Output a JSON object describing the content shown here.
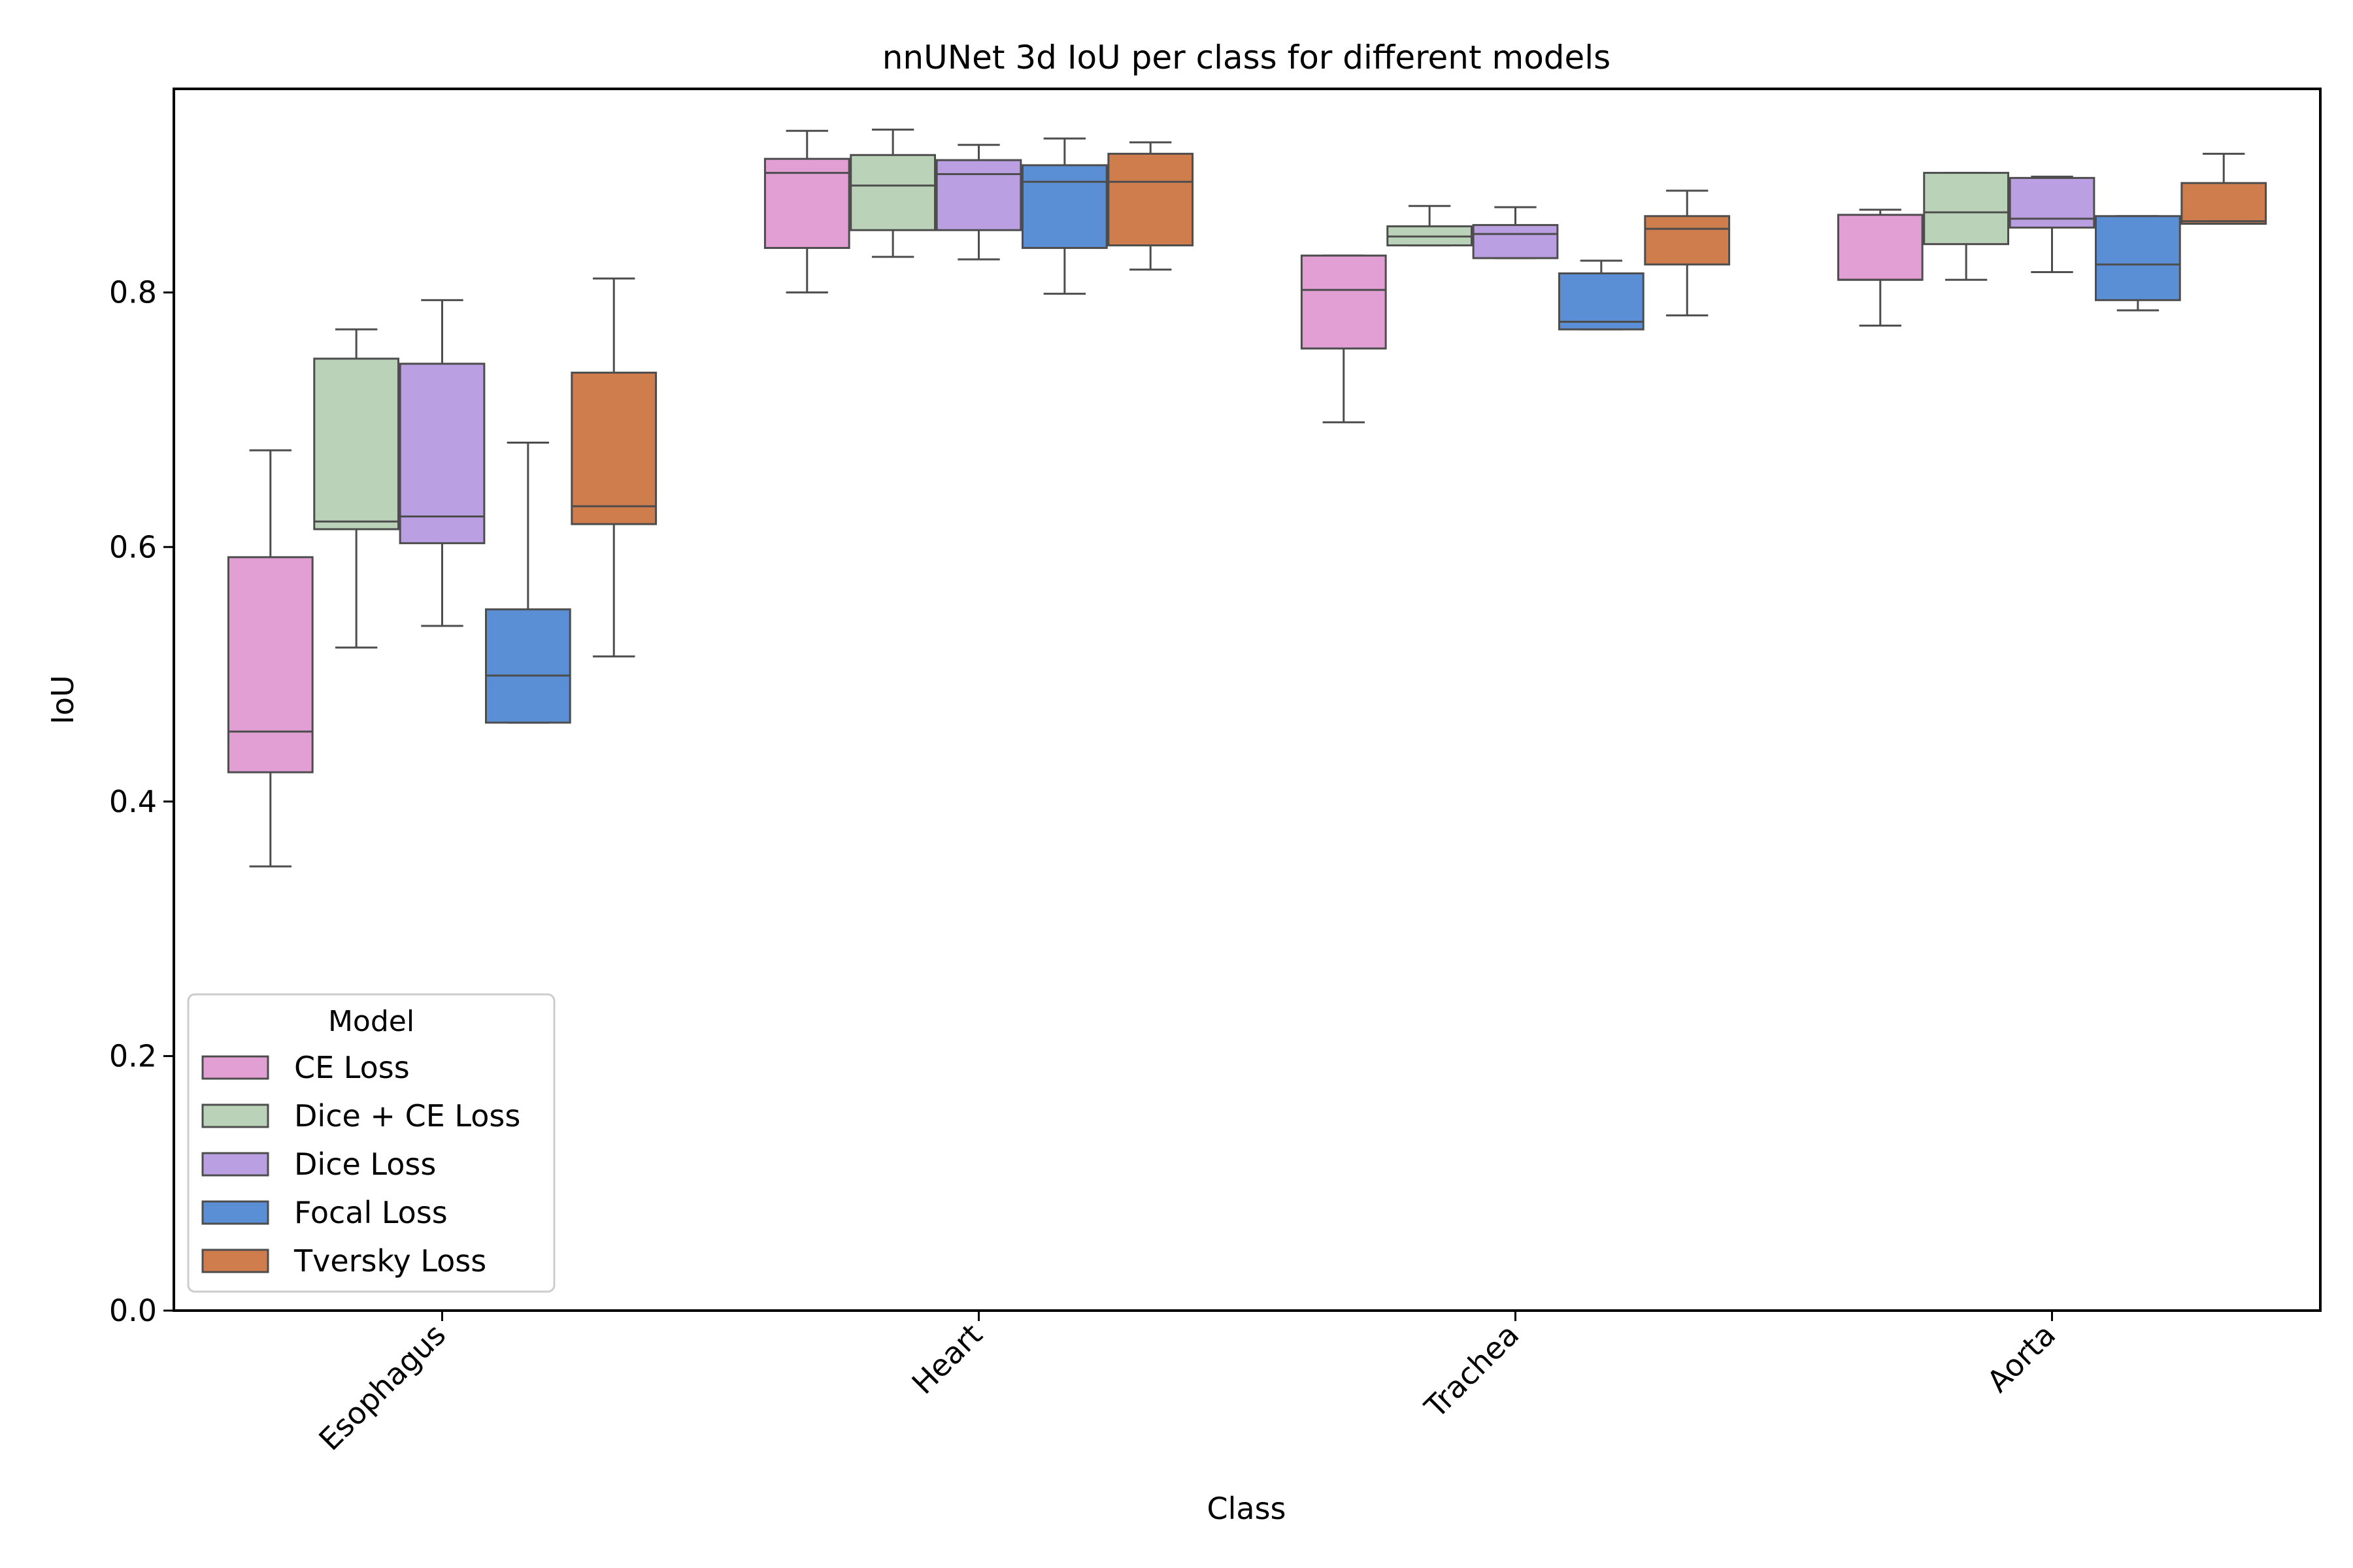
{
  "chart_data": {
    "type": "boxplot",
    "title": "nnUNet 3d IoU per class for different models",
    "xlabel": "Class",
    "ylabel": "IoU",
    "ylim": [
      0,
      0.96
    ],
    "yticks": [
      0.0,
      0.2,
      0.4,
      0.6,
      0.8
    ],
    "ytick_labels": [
      "0.0",
      "0.2",
      "0.4",
      "0.6",
      "0.8"
    ],
    "categories": [
      "Esophagus",
      "Heart",
      "Trachea",
      "Aorta"
    ],
    "legend": {
      "title": "Model",
      "placement": "lower-left"
    },
    "grid": false,
    "series": [
      {
        "name": "CE Loss",
        "color": "#e19fd3",
        "boxes": [
          {
            "whislo": 0.349,
            "q1": 0.423,
            "med": 0.455,
            "q3": 0.592,
            "whishi": 0.676
          },
          {
            "whislo": 0.8,
            "q1": 0.835,
            "med": 0.894,
            "q3": 0.905,
            "whishi": 0.927
          },
          {
            "whislo": 0.698,
            "q1": 0.756,
            "med": 0.802,
            "q3": 0.829,
            "whishi": 0.829
          },
          {
            "whislo": 0.774,
            "q1": 0.81,
            "med": 0.81,
            "q3": 0.861,
            "whishi": 0.865
          }
        ]
      },
      {
        "name": "Dice + CE Loss",
        "color": "#bad3b8",
        "boxes": [
          {
            "whislo": 0.521,
            "q1": 0.614,
            "med": 0.62,
            "q3": 0.748,
            "whishi": 0.771
          },
          {
            "whislo": 0.828,
            "q1": 0.849,
            "med": 0.884,
            "q3": 0.908,
            "whishi": 0.928
          },
          {
            "whislo": 0.837,
            "q1": 0.837,
            "med": 0.844,
            "q3": 0.852,
            "whishi": 0.868
          },
          {
            "whislo": 0.81,
            "q1": 0.838,
            "med": 0.863,
            "q3": 0.894,
            "whishi": 0.894
          }
        ]
      },
      {
        "name": "Dice Loss",
        "color": "#bb9fe3",
        "boxes": [
          {
            "whislo": 0.538,
            "q1": 0.603,
            "med": 0.624,
            "q3": 0.744,
            "whishi": 0.794
          },
          {
            "whislo": 0.826,
            "q1": 0.849,
            "med": 0.893,
            "q3": 0.904,
            "whishi": 0.916
          },
          {
            "whislo": 0.827,
            "q1": 0.827,
            "med": 0.846,
            "q3": 0.853,
            "whishi": 0.867
          },
          {
            "whislo": 0.816,
            "q1": 0.851,
            "med": 0.858,
            "q3": 0.89,
            "whishi": 0.891
          }
        ]
      },
      {
        "name": "Focal Loss",
        "color": "#5a8fd6",
        "boxes": [
          {
            "whislo": 0.462,
            "q1": 0.462,
            "med": 0.499,
            "q3": 0.551,
            "whishi": 0.682
          },
          {
            "whislo": 0.799,
            "q1": 0.835,
            "med": 0.887,
            "q3": 0.9,
            "whishi": 0.921
          },
          {
            "whislo": 0.771,
            "q1": 0.771,
            "med": 0.777,
            "q3": 0.815,
            "whishi": 0.825
          },
          {
            "whislo": 0.786,
            "q1": 0.794,
            "med": 0.822,
            "q3": 0.86,
            "whishi": 0.86
          }
        ]
      },
      {
        "name": "Tversky Loss",
        "color": "#d07d4e",
        "boxes": [
          {
            "whislo": 0.514,
            "q1": 0.618,
            "med": 0.632,
            "q3": 0.737,
            "whishi": 0.811
          },
          {
            "whislo": 0.818,
            "q1": 0.837,
            "med": 0.887,
            "q3": 0.909,
            "whishi": 0.918
          },
          {
            "whislo": 0.782,
            "q1": 0.822,
            "med": 0.85,
            "q3": 0.86,
            "whishi": 0.88
          },
          {
            "whislo": 0.854,
            "q1": 0.854,
            "med": 0.856,
            "q3": 0.886,
            "whishi": 0.909
          }
        ]
      }
    ]
  }
}
